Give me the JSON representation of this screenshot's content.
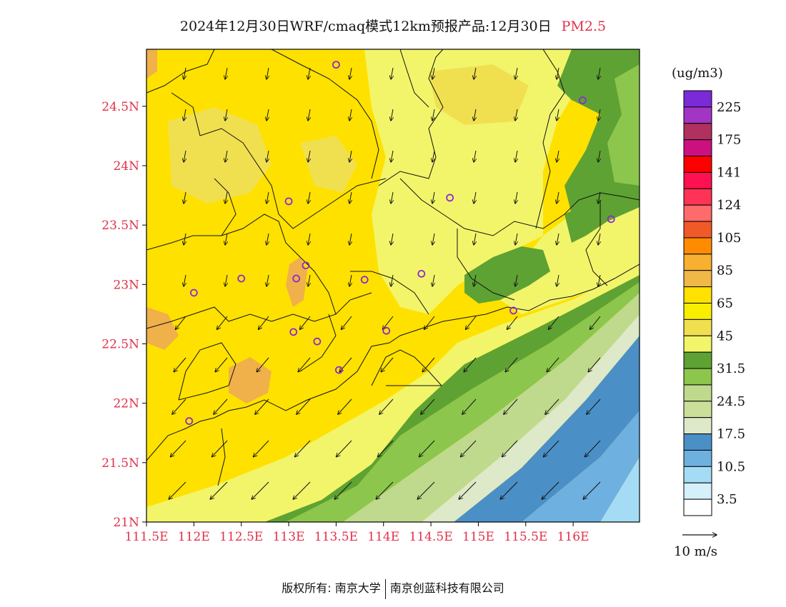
{
  "title": {
    "main": "2024年12月30日WRF/cmaq模式12km预报产品:12月30日",
    "pollutant": "PM2.5"
  },
  "map": {
    "lon_ticks": [
      "111.5E",
      "112E",
      "112.5E",
      "113E",
      "113.5E",
      "114E",
      "114.5E",
      "115E",
      "115.5E",
      "116E"
    ],
    "lat_ticks": [
      "24.5N",
      "24N",
      "23.5N",
      "23N",
      "22.5N",
      "22N",
      "21.5N",
      "21N"
    ],
    "lon_range": [
      111.5,
      116.7
    ],
    "lat_range": [
      21.0,
      24.98
    ],
    "colors": {
      "ocean_far": "#a5dcf5",
      "band_10": "#6eb0e0",
      "band_17": "#4b8fc7",
      "band_20": "#dde9c8",
      "band_24": "#bfd98d",
      "band_28": "#8cc64c",
      "band_31": "#5ea233",
      "band_45": "#f2f56a",
      "band_55": "#f0e050",
      "band_65": "#ffe100",
      "band_85": "#f0b04a",
      "boundary": "#111111",
      "station": "#8a2bd0"
    },
    "stations": [
      {
        "name": "s1",
        "lon": 113.5,
        "lat": 24.85
      },
      {
        "name": "s2",
        "lon": 116.1,
        "lat": 24.55
      },
      {
        "name": "s3",
        "lon": 113.0,
        "lat": 23.7
      },
      {
        "name": "s4",
        "lon": 114.7,
        "lat": 23.73
      },
      {
        "name": "s5",
        "lon": 116.4,
        "lat": 23.55
      },
      {
        "name": "s6",
        "lon": 113.18,
        "lat": 23.16
      },
      {
        "name": "s7",
        "lon": 112.5,
        "lat": 23.05
      },
      {
        "name": "s8",
        "lon": 113.08,
        "lat": 23.05
      },
      {
        "name": "s9",
        "lon": 113.8,
        "lat": 23.04
      },
      {
        "name": "s10",
        "lon": 114.4,
        "lat": 23.09
      },
      {
        "name": "s11",
        "lon": 112.0,
        "lat": 22.93
      },
      {
        "name": "s12",
        "lon": 115.37,
        "lat": 22.78
      },
      {
        "name": "s13",
        "lon": 113.05,
        "lat": 22.6
      },
      {
        "name": "s14",
        "lon": 114.03,
        "lat": 22.61
      },
      {
        "name": "s15",
        "lon": 113.3,
        "lat": 22.52
      },
      {
        "name": "s16",
        "lon": 113.53,
        "lat": 22.28
      },
      {
        "name": "s17",
        "lon": 111.95,
        "lat": 21.85
      }
    ]
  },
  "legend": {
    "unit": "(ug/m3)",
    "swatches": [
      {
        "color": "#7b2ad8"
      },
      {
        "color": "#a335c5"
      },
      {
        "color": "#b03060"
      },
      {
        "color": "#cc1080"
      },
      {
        "color": "#ff0000"
      },
      {
        "color": "#ff1050"
      },
      {
        "color": "#ff3355"
      },
      {
        "color": "#ff6a6a"
      },
      {
        "color": "#f05a28"
      },
      {
        "color": "#ff8c00"
      },
      {
        "color": "#f8b030"
      },
      {
        "color": "#f0b848"
      },
      {
        "color": "#ffe100"
      },
      {
        "color": "#f8ee00"
      },
      {
        "color": "#f0e050"
      },
      {
        "color": "#f2f56a"
      },
      {
        "color": "#5ea233"
      },
      {
        "color": "#8cc64c"
      },
      {
        "color": "#bfd98d"
      },
      {
        "color": "#ccdf9a"
      },
      {
        "color": "#dde9c8"
      },
      {
        "color": "#4b8fc7"
      },
      {
        "color": "#6eb0e0"
      },
      {
        "color": "#a5dcf5"
      },
      {
        "color": "#d6f0fb"
      },
      {
        "color": "#ffffff"
      }
    ],
    "labels": [
      "225",
      "175",
      "141",
      "124",
      "105",
      "85",
      "65",
      "45",
      "31.5",
      "24.5",
      "17.5",
      "10.5",
      "3.5"
    ],
    "wind_scale": "10 m/s"
  },
  "footer": {
    "copyright": "版权所有: 南京大学",
    "company": "南京创蓝科技有限公司"
  }
}
